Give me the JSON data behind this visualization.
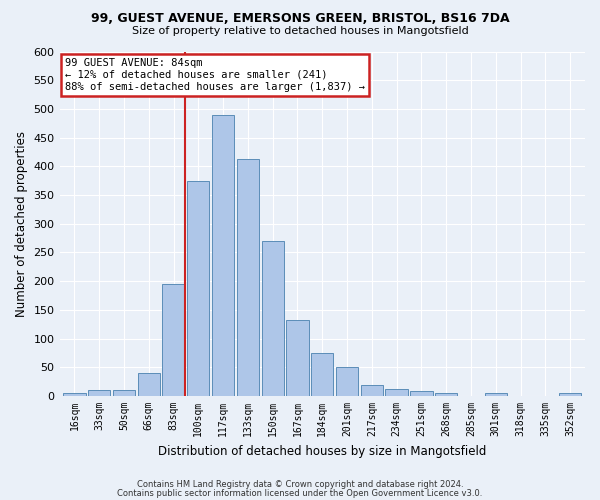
{
  "title1": "99, GUEST AVENUE, EMERSONS GREEN, BRISTOL, BS16 7DA",
  "title2": "Size of property relative to detached houses in Mangotsfield",
  "xlabel": "Distribution of detached houses by size in Mangotsfield",
  "ylabel": "Number of detached properties",
  "bar_labels": [
    "16sqm",
    "33sqm",
    "50sqm",
    "66sqm",
    "83sqm",
    "100sqm",
    "117sqm",
    "133sqm",
    "150sqm",
    "167sqm",
    "184sqm",
    "201sqm",
    "217sqm",
    "234sqm",
    "251sqm",
    "268sqm",
    "285sqm",
    "301sqm",
    "318sqm",
    "335sqm",
    "352sqm"
  ],
  "bar_values": [
    5,
    10,
    11,
    40,
    195,
    375,
    490,
    412,
    270,
    133,
    75,
    50,
    20,
    12,
    8,
    6,
    0,
    6,
    0,
    0,
    5
  ],
  "bar_color": "#aec6e8",
  "bar_edge_color": "#5b8db8",
  "background_color": "#eaf0f8",
  "vline_color": "#cc2222",
  "vline_x_index": 4,
  "annotation_title": "99 GUEST AVENUE: 84sqm",
  "annotation_line1": "← 12% of detached houses are smaller (241)",
  "annotation_line2": "88% of semi-detached houses are larger (1,837) →",
  "annotation_box_facecolor": "#ffffff",
  "annotation_box_edgecolor": "#cc2222",
  "ylim": [
    0,
    600
  ],
  "yticks": [
    0,
    50,
    100,
    150,
    200,
    250,
    300,
    350,
    400,
    450,
    500,
    550,
    600
  ],
  "grid_color": "#ffffff",
  "footer1": "Contains HM Land Registry data © Crown copyright and database right 2024.",
  "footer2": "Contains public sector information licensed under the Open Government Licence v3.0."
}
